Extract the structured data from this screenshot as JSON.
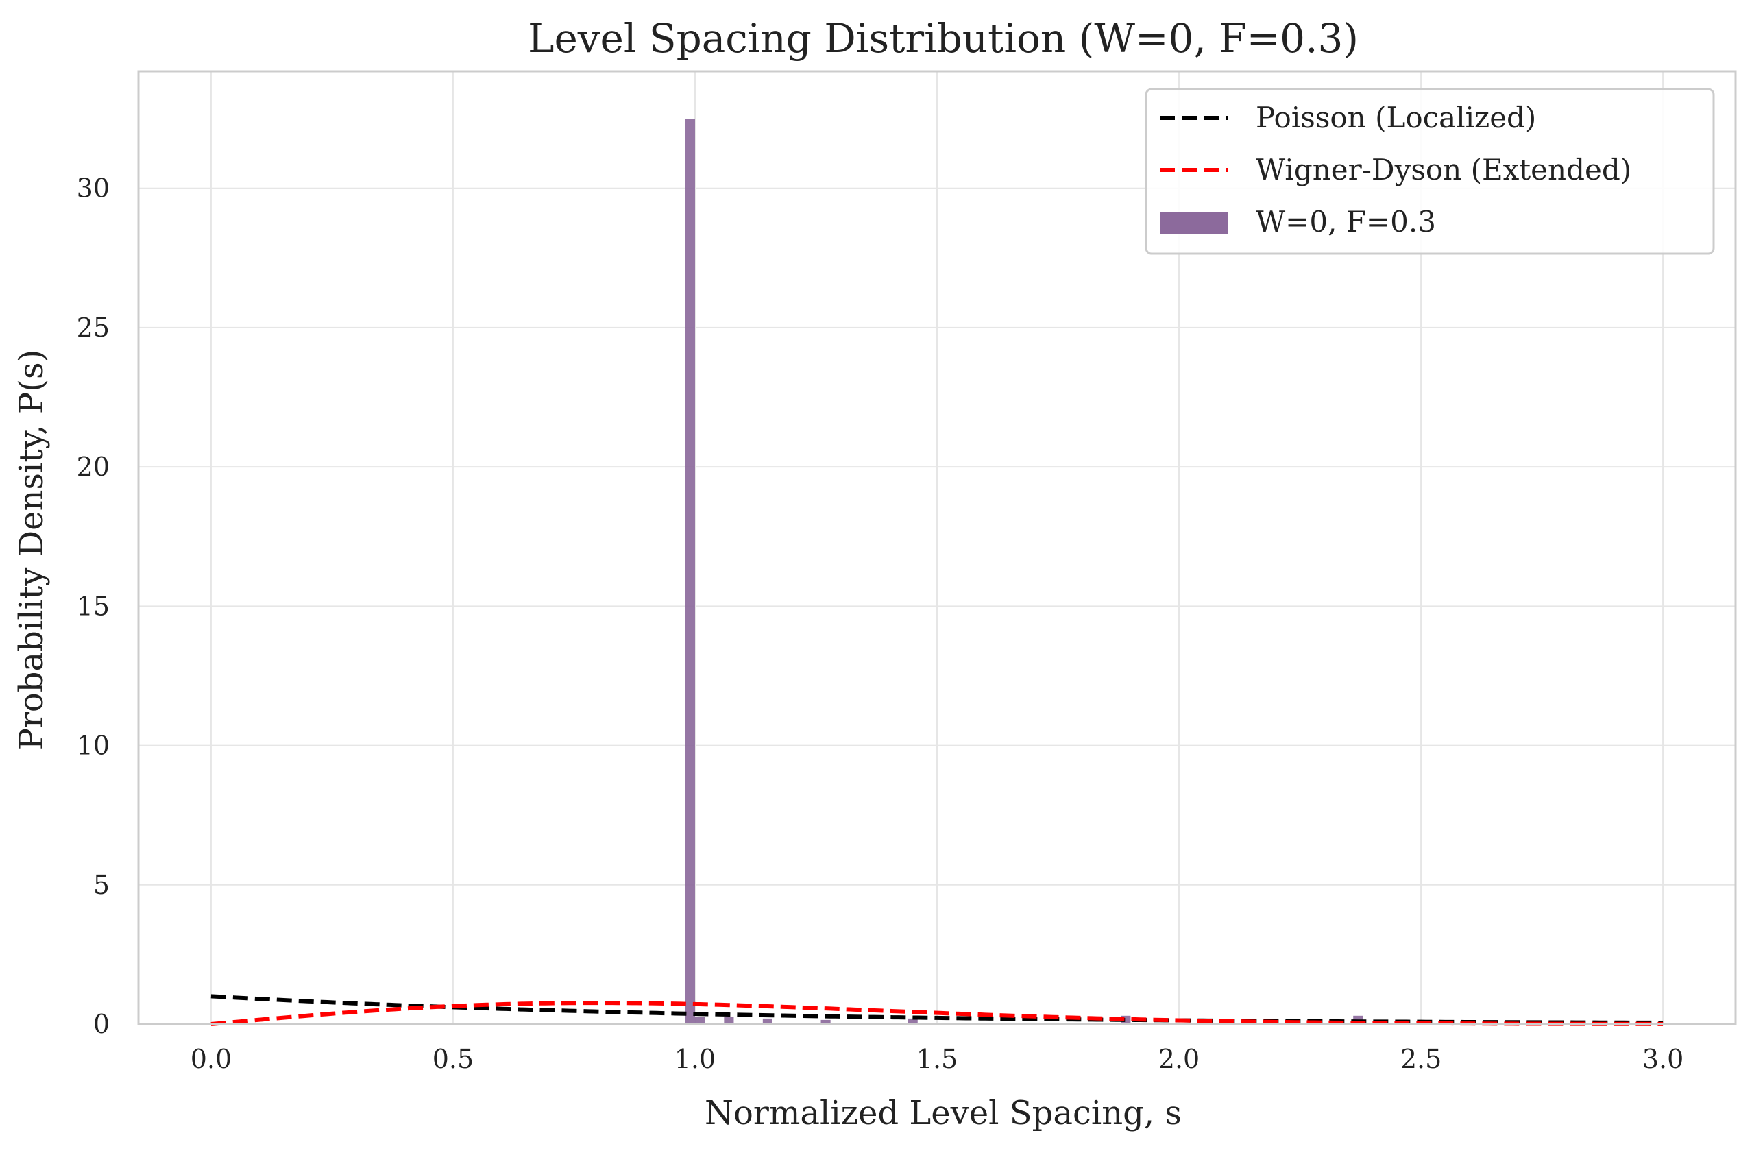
{
  "chart_data": {
    "type": "bar",
    "title": "Level Spacing Distribution (W=0, F=0.3)",
    "xlabel": "Normalized Level Spacing, s",
    "ylabel": "Probability Density, P(s)",
    "xlim": [
      -0.15,
      3.15
    ],
    "ylim": [
      0,
      34.2
    ],
    "xticks": [
      0.0,
      0.5,
      1.0,
      1.5,
      2.0,
      2.5,
      3.0
    ],
    "xtick_labels": [
      "0.0",
      "0.5",
      "1.0",
      "1.5",
      "2.0",
      "2.5",
      "3.0"
    ],
    "yticks": [
      0,
      5,
      10,
      15,
      20,
      25,
      30
    ],
    "ytick_labels": [
      "0",
      "5",
      "10",
      "15",
      "20",
      "25",
      "30"
    ],
    "grid": true,
    "legend_position": "top-right",
    "histogram": {
      "name": "W=0, F=0.3",
      "color": "#8c6a9c",
      "bin_width": 0.02,
      "bins": [
        {
          "x": 0.98,
          "value": 32.5
        },
        {
          "x": 1.0,
          "value": 0.25
        },
        {
          "x": 1.06,
          "value": 0.25
        },
        {
          "x": 1.14,
          "value": 0.2
        },
        {
          "x": 1.26,
          "value": 0.15
        },
        {
          "x": 1.44,
          "value": 0.2
        },
        {
          "x": 1.88,
          "value": 0.3
        },
        {
          "x": 2.36,
          "value": 0.3
        }
      ]
    },
    "series": [
      {
        "name": "Poisson (Localized)",
        "color": "#000000",
        "style": "dashed",
        "formula": "poisson"
      },
      {
        "name": "Wigner-Dyson (Extended)",
        "color": "#ff0000",
        "style": "dashed",
        "formula": "wigner"
      }
    ]
  }
}
